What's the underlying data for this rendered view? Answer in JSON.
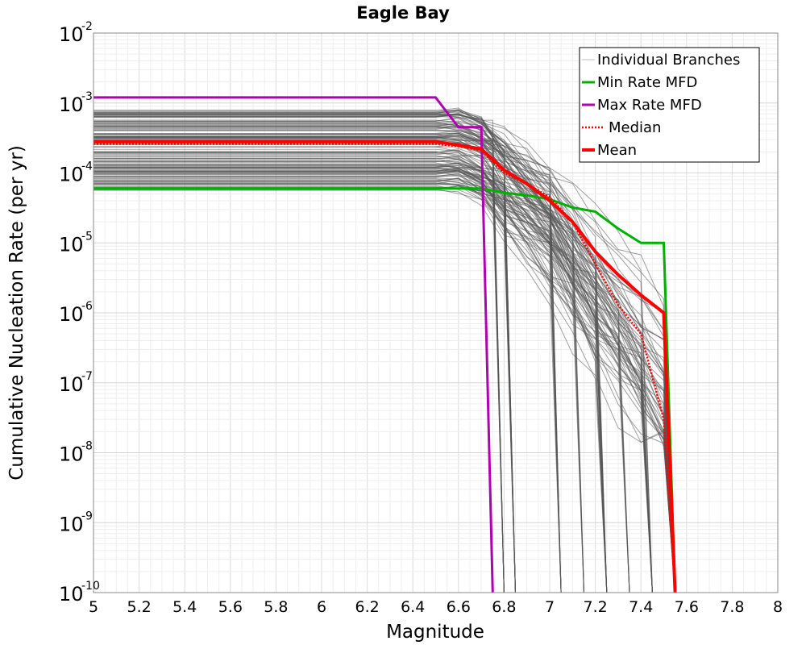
{
  "chart_data": {
    "type": "line",
    "title": "Eagle Bay",
    "xlabel": "Magnitude",
    "ylabel": "Cumulative Nucleation Rate (per yr)",
    "xlim": [
      5,
      8
    ],
    "ylim_log10": [
      -10,
      -2
    ],
    "x_ticks": [
      "5",
      "5.2",
      "5.4",
      "5.6",
      "5.8",
      "6",
      "6.2",
      "6.4",
      "6.6",
      "6.8",
      "7",
      "7.2",
      "7.4",
      "7.6",
      "7.8",
      "8"
    ],
    "y_ticks": [
      {
        "base": "10",
        "exp": "-2"
      },
      {
        "base": "10",
        "exp": "-3"
      },
      {
        "base": "10",
        "exp": "-4"
      },
      {
        "base": "10",
        "exp": "-5"
      },
      {
        "base": "10",
        "exp": "-6"
      },
      {
        "base": "10",
        "exp": "-7"
      },
      {
        "base": "10",
        "exp": "-8"
      },
      {
        "base": "10",
        "exp": "-9"
      },
      {
        "base": "10",
        "exp": "-10"
      }
    ],
    "grid": true,
    "legend_position": "top-right",
    "series": [
      {
        "name": "Min Rate MFD",
        "color": "#00b000",
        "style": "solid",
        "x": [
          5.0,
          6.7,
          6.8,
          6.9,
          7.0,
          7.1,
          7.2,
          7.3,
          7.4,
          7.5,
          7.55
        ],
        "y": [
          6e-05,
          6e-05,
          5.2e-05,
          4.8e-05,
          4.2e-05,
          3.2e-05,
          2.8e-05,
          1.6e-05,
          1e-05,
          1e-05,
          1e-10
        ]
      },
      {
        "name": "Max Rate MFD",
        "color": "#b000b0",
        "style": "solid",
        "x": [
          5.0,
          6.5,
          6.6,
          6.7,
          6.75
        ],
        "y": [
          0.0012,
          0.0012,
          0.00045,
          0.00045,
          1e-10
        ]
      },
      {
        "name": "Median",
        "color": "#ff0000",
        "style": "dotted",
        "x": [
          5.0,
          6.5,
          6.6,
          6.7,
          6.8,
          6.9,
          7.0,
          7.1,
          7.2,
          7.3,
          7.4,
          7.5,
          7.55
        ],
        "y": [
          0.00026,
          0.00026,
          0.00024,
          0.00021,
          0.0001,
          7e-05,
          4.5e-05,
          2e-05,
          5e-06,
          1.3e-06,
          5e-07,
          3e-08,
          1e-10
        ]
      },
      {
        "name": "Mean",
        "color": "#ff0000",
        "style": "solid",
        "x": [
          5.0,
          6.5,
          6.6,
          6.7,
          6.8,
          6.9,
          7.0,
          7.1,
          7.2,
          7.3,
          7.4,
          7.5,
          7.55
        ],
        "y": [
          0.00028,
          0.00028,
          0.00025,
          0.00022,
          0.00011,
          7e-05,
          4e-05,
          2e-05,
          7.5e-06,
          3.5e-06,
          1.8e-06,
          1e-06,
          1e-10
        ]
      }
    ],
    "individual_branches": {
      "name": "Individual Branches",
      "color": "#555555",
      "count": 140
    },
    "legend": [
      "Individual Branches",
      "Min Rate MFD",
      "Max Rate MFD",
      "Median",
      "Mean"
    ]
  }
}
